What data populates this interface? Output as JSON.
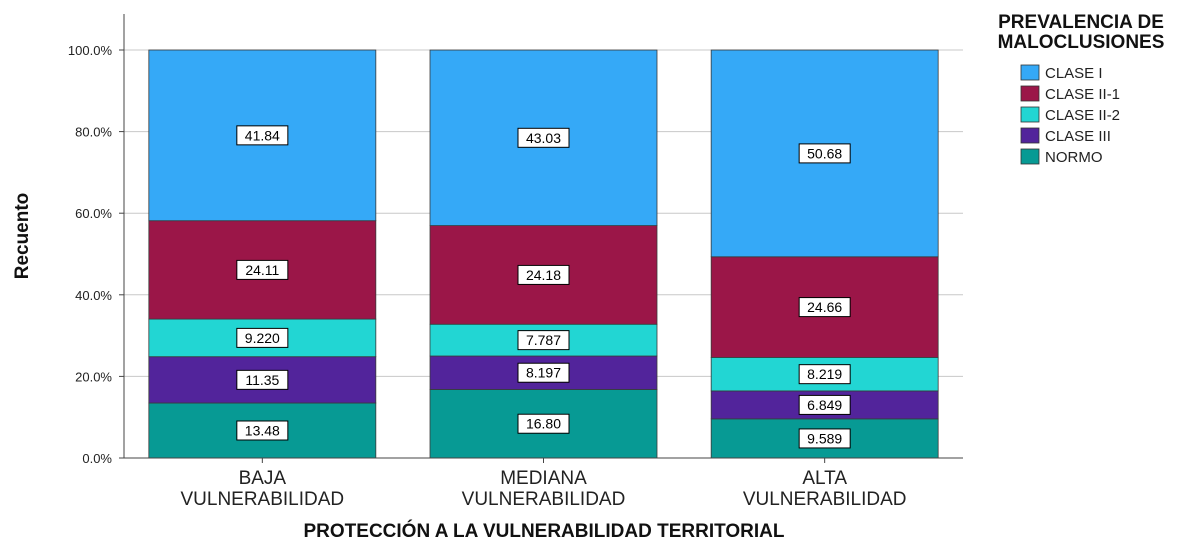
{
  "chart_data": {
    "type": "bar",
    "stacked": true,
    "categories": [
      [
        "BAJA",
        "VULNERABILIDAD"
      ],
      [
        "MEDIANA",
        "VULNERABILIDAD"
      ],
      [
        "ALTA",
        "VULNERABILIDAD"
      ]
    ],
    "series": [
      {
        "name": "NORMO",
        "color": "#079a94",
        "values": [
          13.48,
          16.8,
          9.589
        ],
        "labels": [
          "13.48",
          "16.80",
          "9.589"
        ]
      },
      {
        "name": "CLASE III",
        "color": "#52249b",
        "values": [
          11.35,
          8.197,
          6.849
        ],
        "labels": [
          "11.35",
          "8.197",
          "6.849"
        ]
      },
      {
        "name": "CLASE II-2",
        "color": "#22d6d3",
        "values": [
          9.22,
          7.787,
          8.219
        ],
        "labels": [
          "9.220",
          "7.787",
          "8.219"
        ]
      },
      {
        "name": "CLASE II-1",
        "color": "#9b1648",
        "values": [
          24.11,
          24.18,
          24.66
        ],
        "labels": [
          "24.11",
          "24.18",
          "24.66"
        ]
      },
      {
        "name": "CLASE I",
        "color": "#35a9f7",
        "values": [
          41.84,
          43.03,
          50.68
        ],
        "labels": [
          "41.84",
          "43.03",
          "50.68"
        ]
      }
    ],
    "xlabel": "PROTECCIÓN A LA VULNERABILIDAD TERRITORIAL",
    "ylabel": "Recuento",
    "ylim": [
      0,
      100
    ],
    "yticks": [
      "0.0%",
      "20.0%",
      "40.0%",
      "60.0%",
      "80.0%",
      "100.0%"
    ],
    "grid": true,
    "legend": {
      "title": [
        "PREVALENCIA DE",
        "MALOCLUSIONES"
      ],
      "placement": "top-right",
      "order": [
        "CLASE I",
        "CLASE II-1",
        "CLASE II-2",
        "CLASE III",
        "NORMO"
      ]
    }
  }
}
